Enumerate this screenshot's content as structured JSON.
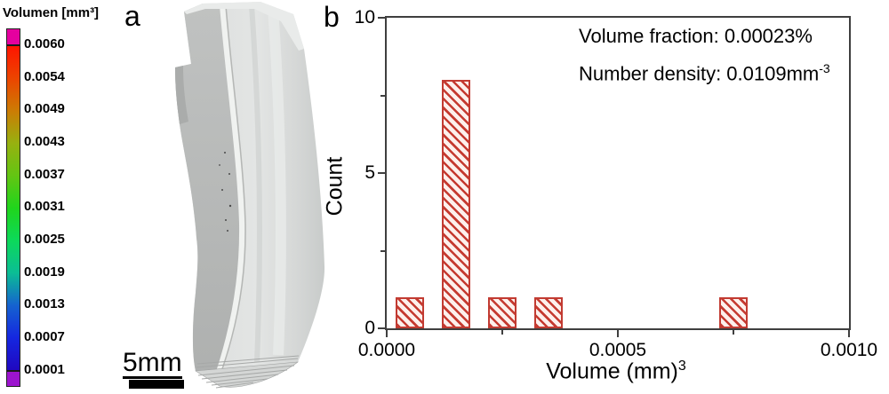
{
  "colorbar": {
    "title": "Volumen [mm³]",
    "tick_labels": [
      "0.0060",
      "0.0054",
      "0.0049",
      "0.0043",
      "0.0037",
      "0.0031",
      "0.0025",
      "0.0019",
      "0.0013",
      "0.0007",
      "0.0001"
    ],
    "top_cap_color": "#e5009f",
    "bottom_cap_color": "#9c14ce",
    "separator_color": "#1a1a1a",
    "scale_colors": [
      "#ff1500",
      "#ec4500",
      "#cc7c04",
      "#97b110",
      "#63c513",
      "#20d51c",
      "#0cd95a",
      "#0bbd95",
      "#1563cf",
      "#1527e0",
      "#2008c0"
    ]
  },
  "panel_a": {
    "label": "a",
    "scale_bar_label": "5mm"
  },
  "panel_b": {
    "label": "b"
  },
  "chart_data": {
    "type": "bar",
    "title": "",
    "xlabel": {
      "text": "Volume (mm)",
      "sup": "3"
    },
    "ylabel": "Count",
    "xlim": [
      0.0,
      0.001
    ],
    "ylim": [
      0,
      10
    ],
    "grid": false,
    "legend": "none",
    "x_major_ticks": [
      {
        "value": 0.0,
        "label": "0.0000"
      },
      {
        "value": 0.0005,
        "label": "0.0005"
      },
      {
        "value": 0.001,
        "label": "0.0010"
      }
    ],
    "x_minor_ticks": [
      0.00025,
      0.00075
    ],
    "y_major_ticks": [
      {
        "value": 0,
        "label": "0"
      },
      {
        "value": 5,
        "label": "5"
      },
      {
        "value": 10,
        "label": "10"
      }
    ],
    "y_minor_ticks": [
      2.5,
      7.5
    ],
    "bin_width": 0.0001,
    "bars": [
      {
        "center": 5e-05,
        "count": 1
      },
      {
        "center": 0.00015,
        "count": 8
      },
      {
        "center": 0.00025,
        "count": 1
      },
      {
        "center": 0.00035,
        "count": 1
      },
      {
        "center": 0.00075,
        "count": 1
      }
    ],
    "annotations": [
      {
        "text": "Volume fraction: 0.00023%"
      },
      {
        "text": "Number density: 0.0109mm",
        "sup": "-3"
      }
    ],
    "bar_edge_color": "#c23b32",
    "bar_fill_color": "#fdf0ec",
    "hatch_color": "#c53a30",
    "hatch_style": "backslash-diagonal"
  }
}
